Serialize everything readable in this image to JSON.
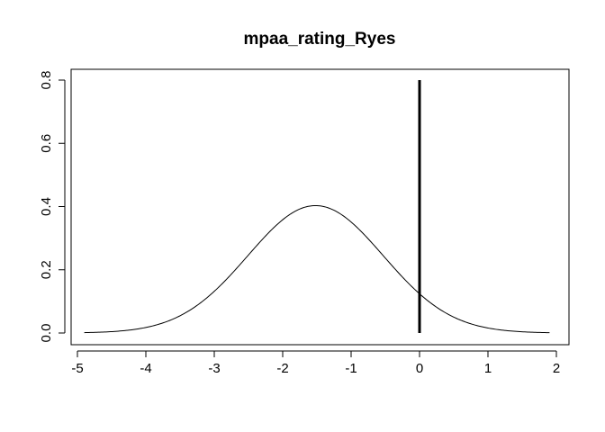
{
  "chart_data": {
    "type": "line",
    "title": "mpaa_rating_Ryes",
    "xlabel": "",
    "ylabel": "",
    "xlim": [
      -4.9,
      1.9
    ],
    "ylim": [
      0,
      0.8
    ],
    "x_ticks": [
      -5,
      -4,
      -3,
      -2,
      -1,
      0,
      1,
      2
    ],
    "y_ticks": [
      0.0,
      0.2,
      0.4,
      0.6,
      0.8
    ],
    "x_tick_labels": [
      "-5",
      "-4",
      "-3",
      "-2",
      "-1",
      "0",
      "1",
      "2"
    ],
    "y_tick_labels": [
      "0.0",
      "0.2",
      "0.4",
      "0.6",
      "0.8"
    ],
    "series": [
      {
        "kind": "density-curve",
        "color": "#000000",
        "distribution": {
          "mean": -1.52,
          "sd": 0.99
        },
        "x_range": [
          -4.9,
          1.9
        ]
      },
      {
        "kind": "vertical-segment",
        "color": "#000000",
        "x": 0,
        "y": [
          0,
          0.8
        ]
      }
    ],
    "grid": false,
    "legend": "none"
  }
}
